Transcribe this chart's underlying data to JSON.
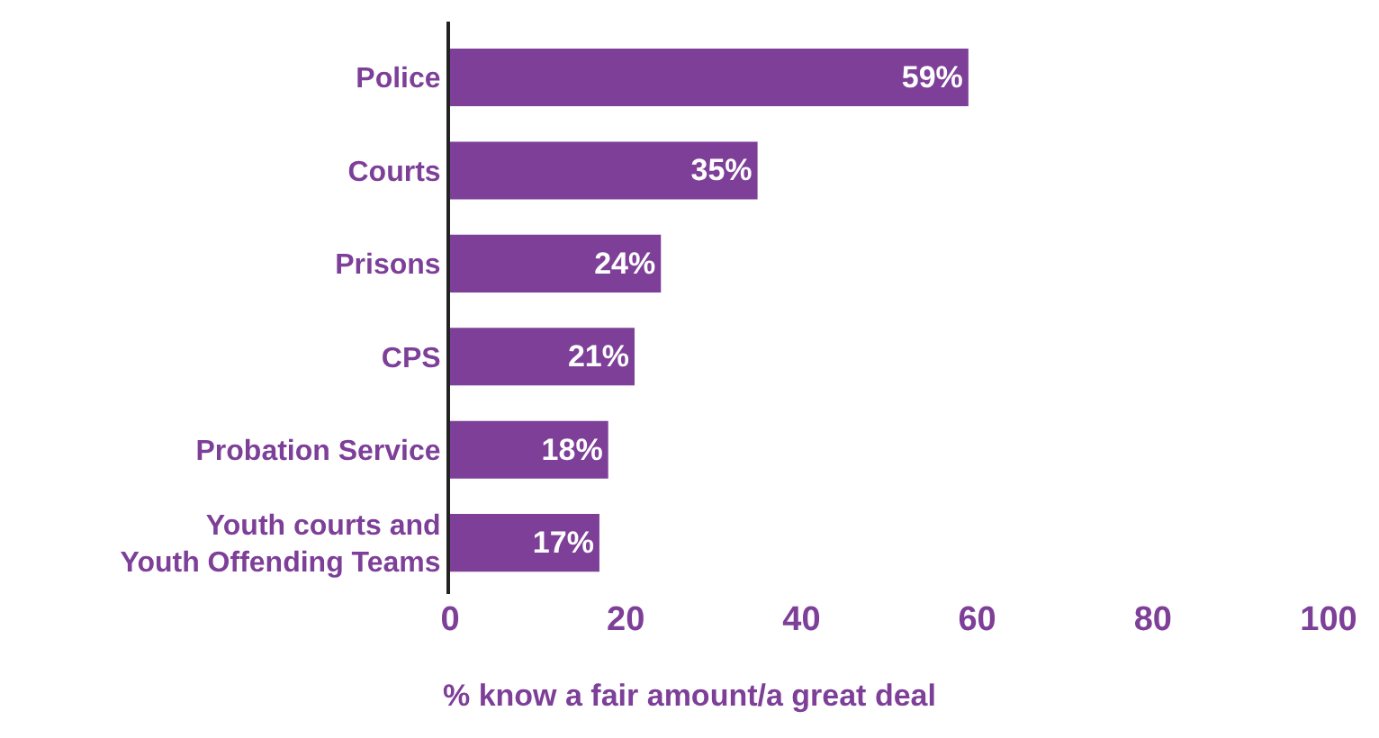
{
  "chart_data": {
    "type": "bar",
    "orientation": "horizontal",
    "categories": [
      "Police",
      "Courts",
      "Prisons",
      "CPS",
      "Probation Service",
      "Youth courts and Youth Offending Teams"
    ],
    "values": [
      59,
      35,
      24,
      21,
      18,
      17
    ],
    "value_labels": [
      "59%",
      "35%",
      "24%",
      "21%",
      "18%",
      "17%"
    ],
    "color": "#7d3f98",
    "xlim": [
      0,
      100
    ],
    "xticks": [
      0,
      20,
      40,
      60,
      80,
      100
    ],
    "xlabel": "% know a fair amount/a great deal"
  }
}
